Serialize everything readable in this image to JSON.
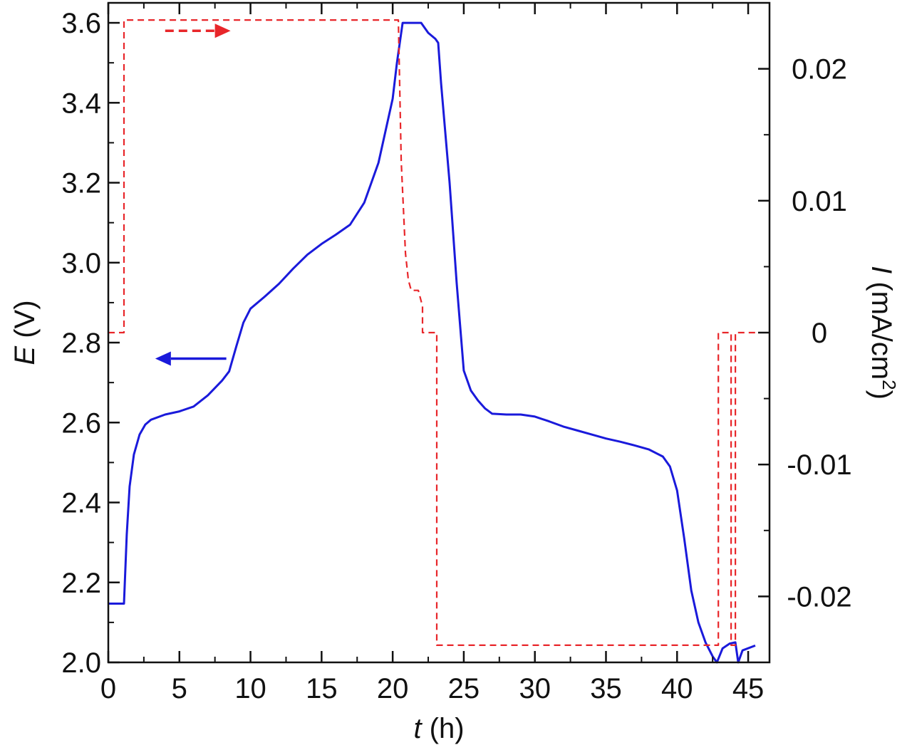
{
  "chart_data": {
    "type": "line",
    "x_axis": {
      "label_symbol": "t",
      "label_unit": " (h)",
      "range": [
        0,
        46.5
      ],
      "ticks": [
        0,
        5,
        10,
        15,
        20,
        25,
        30,
        35,
        40,
        45
      ],
      "tick_labels": [
        "0",
        "5",
        "10",
        "15",
        "20",
        "25",
        "30",
        "35",
        "40",
        "45"
      ]
    },
    "y_left_axis": {
      "label_symbol": "E",
      "label_unit": " (V)",
      "range": [
        2.0,
        3.65
      ],
      "ticks": [
        2.0,
        2.2,
        2.4,
        2.6,
        2.8,
        3.0,
        3.2,
        3.4,
        3.6
      ],
      "tick_labels": [
        "2.0",
        "2.2",
        "2.4",
        "2.6",
        "2.8",
        "3.0",
        "3.2",
        "3.4",
        "3.6"
      ]
    },
    "y_right_axis": {
      "label_symbol": "I",
      "label_unit": " (mA/cm",
      "label_sup": "2",
      "label_close": ")",
      "range": [
        -0.025,
        0.025
      ],
      "ticks": [
        0.02,
        0.01,
        0,
        -0.01,
        -0.02
      ],
      "tick_labels": [
        "0.02",
        "0.01",
        "0",
        "-0.01",
        "-0.02"
      ]
    },
    "grid": false,
    "legend": "none",
    "series": [
      {
        "axis": "left",
        "color": "#1a1adb",
        "style": "solid",
        "points": [
          [
            0,
            2.147
          ],
          [
            1.1,
            2.147
          ],
          [
            1.3,
            2.32
          ],
          [
            1.5,
            2.44
          ],
          [
            1.8,
            2.52
          ],
          [
            2.2,
            2.57
          ],
          [
            2.6,
            2.595
          ],
          [
            3,
            2.607
          ],
          [
            4,
            2.62
          ],
          [
            5,
            2.628
          ],
          [
            6,
            2.64
          ],
          [
            7,
            2.668
          ],
          [
            8,
            2.705
          ],
          [
            8.5,
            2.728
          ],
          [
            9,
            2.79
          ],
          [
            9.5,
            2.85
          ],
          [
            10,
            2.885
          ],
          [
            11,
            2.915
          ],
          [
            12,
            2.947
          ],
          [
            13,
            2.985
          ],
          [
            14,
            3.02
          ],
          [
            15,
            3.047
          ],
          [
            16,
            3.07
          ],
          [
            17,
            3.095
          ],
          [
            18,
            3.15
          ],
          [
            19,
            3.25
          ],
          [
            20,
            3.41
          ],
          [
            20.3,
            3.5
          ],
          [
            20.7,
            3.6
          ],
          [
            22,
            3.6
          ],
          [
            22.5,
            3.575
          ],
          [
            23,
            3.56
          ],
          [
            23.2,
            3.55
          ],
          [
            23.4,
            3.45
          ],
          [
            24,
            3.2
          ],
          [
            24.5,
            2.95
          ],
          [
            25,
            2.73
          ],
          [
            25.5,
            2.68
          ],
          [
            26,
            2.655
          ],
          [
            26.5,
            2.635
          ],
          [
            27,
            2.622
          ],
          [
            28,
            2.62
          ],
          [
            29,
            2.62
          ],
          [
            30,
            2.615
          ],
          [
            31,
            2.603
          ],
          [
            32,
            2.59
          ],
          [
            33,
            2.58
          ],
          [
            34,
            2.57
          ],
          [
            35,
            2.56
          ],
          [
            36,
            2.552
          ],
          [
            37,
            2.543
          ],
          [
            38,
            2.533
          ],
          [
            39,
            2.515
          ],
          [
            39.5,
            2.49
          ],
          [
            40,
            2.43
          ],
          [
            40.5,
            2.31
          ],
          [
            41,
            2.18
          ],
          [
            41.5,
            2.1
          ],
          [
            42,
            2.05
          ],
          [
            42.5,
            2.015
          ],
          [
            42.8,
            2.0
          ],
          [
            43.2,
            2.035
          ],
          [
            43.7,
            2.047
          ],
          [
            44.1,
            2.05
          ],
          [
            44.3,
            2.0
          ],
          [
            44.6,
            2.03
          ],
          [
            45.5,
            2.042
          ]
        ]
      },
      {
        "axis": "right",
        "color": "#e8262a",
        "style": "dashed",
        "points": [
          [
            0,
            0
          ],
          [
            1.1,
            0
          ],
          [
            1.1,
            0.0237
          ],
          [
            20.4,
            0.0237
          ],
          [
            20.6,
            0.013
          ],
          [
            20.9,
            0.006
          ],
          [
            21.1,
            0.004
          ],
          [
            21.3,
            0.0032
          ],
          [
            21.8,
            0.0032
          ],
          [
            22.1,
            0.002
          ],
          [
            22.1,
            0
          ],
          [
            23.1,
            0
          ],
          [
            23.1,
            -0.0237
          ],
          [
            42.9,
            -0.0237
          ],
          [
            42.9,
            0
          ],
          [
            43.8,
            0
          ],
          [
            43.8,
            -0.0237
          ],
          [
            44.1,
            -0.0237
          ],
          [
            44.1,
            0
          ],
          [
            45.5,
            0
          ]
        ]
      }
    ],
    "annotations": [
      {
        "kind": "arrow",
        "direction": "left",
        "color": "#1a1adb",
        "style": "solid",
        "x_from": 8.3,
        "x_to": 3.3,
        "y": 2.76,
        "axis": "left"
      },
      {
        "kind": "arrow",
        "direction": "right",
        "color": "#e8262a",
        "style": "dashed",
        "x_from": 4.0,
        "x_to": 8.6,
        "y": 3.58,
        "axis": "left"
      }
    ]
  }
}
